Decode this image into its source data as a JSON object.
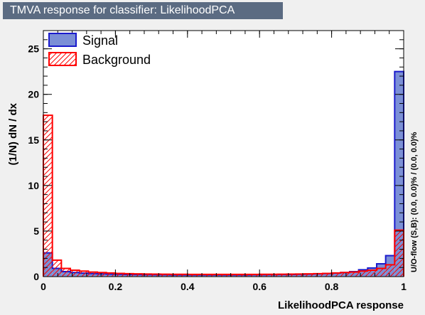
{
  "chart_data": {
    "type": "bar",
    "title": "TMVA response for classifier: LikelihoodPCA",
    "xlabel": "LikelihoodPCA response",
    "ylabel": "(1/N) dN / dx",
    "side_label": "U/O-flow (S,B): (0.0, 0.0)% / (0.0, 0.0)%",
    "xlim": [
      0,
      1
    ],
    "ylim": [
      0,
      27
    ],
    "x_ticks": [
      0,
      0.2,
      0.4,
      0.6,
      0.8,
      1
    ],
    "x_tick_labels": [
      "0",
      "0.2",
      "0.4",
      "0.6",
      "0.8",
      "1"
    ],
    "y_ticks": [
      0,
      5,
      10,
      15,
      20,
      25
    ],
    "y_tick_labels": [
      "0",
      "5",
      "10",
      "15",
      "20",
      "25"
    ],
    "bin_edges_start": 0,
    "bin_width": 0.025,
    "legend_position": "top-left",
    "series": [
      {
        "name": "Signal",
        "style": "filled",
        "fill": "#7b8fd6",
        "line": "#1a1acc",
        "values": [
          2.6,
          0.9,
          0.55,
          0.45,
          0.38,
          0.33,
          0.3,
          0.27,
          0.25,
          0.23,
          0.22,
          0.21,
          0.2,
          0.2,
          0.19,
          0.19,
          0.19,
          0.19,
          0.19,
          0.19,
          0.19,
          0.19,
          0.19,
          0.2,
          0.2,
          0.21,
          0.22,
          0.23,
          0.25,
          0.27,
          0.3,
          0.33,
          0.38,
          0.45,
          0.55,
          0.75,
          0.95,
          1.4,
          2.3,
          22.5
        ]
      },
      {
        "name": "Background",
        "style": "hatched",
        "fill": "#ff0000",
        "line": "#ff0000",
        "values": [
          17.7,
          1.8,
          0.9,
          0.7,
          0.6,
          0.5,
          0.45,
          0.4,
          0.35,
          0.32,
          0.3,
          0.28,
          0.27,
          0.26,
          0.25,
          0.25,
          0.24,
          0.24,
          0.24,
          0.24,
          0.24,
          0.24,
          0.24,
          0.24,
          0.25,
          0.25,
          0.26,
          0.27,
          0.28,
          0.3,
          0.32,
          0.35,
          0.4,
          0.45,
          0.5,
          0.6,
          0.7,
          0.9,
          1.3,
          5.1
        ]
      }
    ]
  }
}
